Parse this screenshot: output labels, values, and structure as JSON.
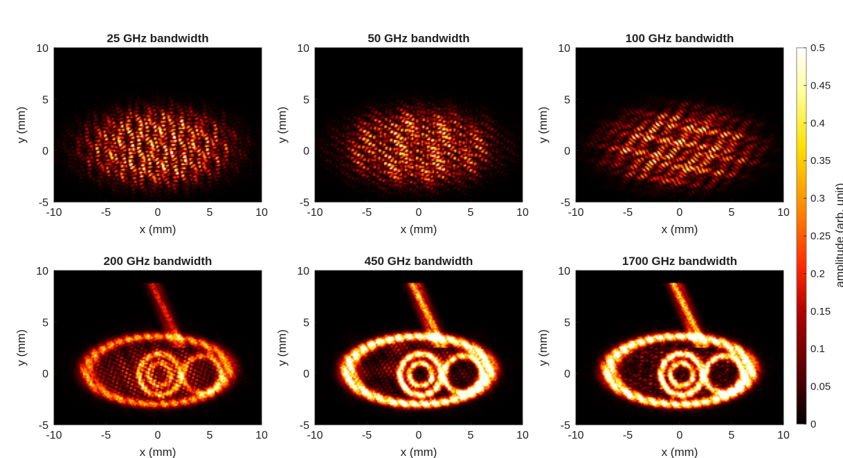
{
  "chart_data": [
    {
      "type": "heatmap",
      "title": "25 GHz bandwidth",
      "xlabel": "x (mm)",
      "ylabel": "y (mm)",
      "xlim": [
        -10,
        10
      ],
      "ylim": [
        -5,
        10
      ],
      "xticks": [
        "-10",
        "-5",
        "0",
        "5",
        "10"
      ],
      "yticks": [
        "-5",
        "0",
        "5",
        "10"
      ],
      "peak_amplitude": 0.5,
      "pattern": "speckle"
    },
    {
      "type": "heatmap",
      "title": "50 GHz bandwidth",
      "xlabel": "x (mm)",
      "ylabel": "y (mm)",
      "xlim": [
        -10,
        10
      ],
      "ylim": [
        -5,
        10
      ],
      "xticks": [
        "-10",
        "-5",
        "0",
        "5",
        "10"
      ],
      "yticks": [
        "-5",
        "0",
        "5",
        "10"
      ],
      "peak_amplitude": 0.47,
      "pattern": "speckle"
    },
    {
      "type": "heatmap",
      "title": "100 GHz bandwidth",
      "xlabel": "x (mm)",
      "ylabel": "y (mm)",
      "xlim": [
        -10,
        10
      ],
      "ylim": [
        -5,
        10
      ],
      "xticks": [
        "-10",
        "-5",
        "0",
        "5",
        "10"
      ],
      "yticks": [
        "-5",
        "0",
        "5",
        "10"
      ],
      "peak_amplitude": 0.45,
      "pattern": "speckle"
    },
    {
      "type": "heatmap",
      "title": "200 GHz bandwidth",
      "xlabel": "x (mm)",
      "ylabel": "y (mm)",
      "xlim": [
        -10,
        10
      ],
      "ylim": [
        -5,
        10
      ],
      "xticks": [
        "-10",
        "-5",
        "0",
        "5",
        "10"
      ],
      "yticks": [
        "-5",
        "0",
        "5",
        "10"
      ],
      "peak_amplitude": 0.4,
      "pattern": "mixed"
    },
    {
      "type": "heatmap",
      "title": "450 GHz bandwidth",
      "xlabel": "x (mm)",
      "ylabel": "y (mm)",
      "xlim": [
        -10,
        10
      ],
      "ylim": [
        -5,
        10
      ],
      "xticks": [
        "-10",
        "-5",
        "0",
        "5",
        "10"
      ],
      "yticks": [
        "-5",
        "0",
        "5",
        "10"
      ],
      "peak_amplitude": 0.5,
      "pattern": "outline"
    },
    {
      "type": "heatmap",
      "title": "1700 GHz bandwidth",
      "xlabel": "x (mm)",
      "ylabel": "y (mm)",
      "xlim": [
        -10,
        10
      ],
      "ylim": [
        -5,
        10
      ],
      "xticks": [
        "-10",
        "-5",
        "0",
        "5",
        "10"
      ],
      "yticks": [
        "-5",
        "0",
        "5",
        "10"
      ],
      "peak_amplitude": 0.5,
      "pattern": "outline"
    }
  ],
  "colorbar": {
    "label": "amplitude (arb. unit)",
    "ticks": [
      "0",
      "0.05",
      "0.1",
      "0.15",
      "0.2",
      "0.25",
      "0.3",
      "0.35",
      "0.4",
      "0.45",
      "0.5"
    ],
    "range": [
      0,
      0.5
    ],
    "colormap": "hot",
    "colors": [
      "#000000",
      "#4d0000",
      "#b30000",
      "#ff2a00",
      "#ff8c00",
      "#ffe000",
      "#ffff99",
      "#ffffff"
    ]
  }
}
